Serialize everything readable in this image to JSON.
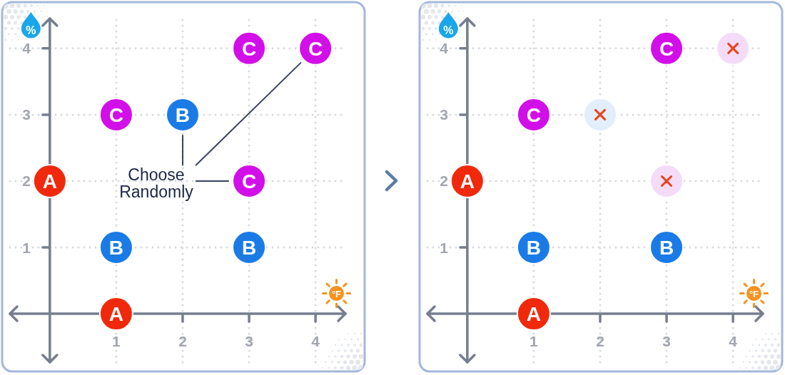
{
  "chart_data": [
    {
      "type": "scatter",
      "xlabel": "°F",
      "ylabel": "%",
      "xlim": [
        -0.6,
        4.45
      ],
      "ylim": [
        -0.73,
        4.45
      ],
      "xticks": [
        1,
        2,
        3,
        4
      ],
      "yticks": [
        1,
        2,
        3,
        4
      ],
      "grid": true,
      "marker": "circle",
      "annotations": [
        "Choose Randomly"
      ],
      "series": [
        {
          "name": "A",
          "color": "#f0290c",
          "x": [
            0,
            1
          ],
          "values": [
            2,
            0
          ]
        },
        {
          "name": "B",
          "color": "#1a7be6",
          "x": [
            2,
            1,
            3
          ],
          "values": [
            3,
            1,
            1
          ]
        },
        {
          "name": "C",
          "color": "#d20fe8",
          "x": [
            1,
            3,
            4,
            3
          ],
          "values": [
            3,
            4,
            4,
            2
          ]
        }
      ]
    },
    {
      "type": "scatter",
      "xlabel": "°F",
      "ylabel": "%",
      "xlim": [
        -0.6,
        4.45
      ],
      "ylim": [
        -0.73,
        4.45
      ],
      "xticks": [
        1,
        2,
        3,
        4
      ],
      "yticks": [
        1,
        2,
        3,
        4
      ],
      "grid": true,
      "marker": "circle",
      "series": [
        {
          "name": "A",
          "color": "#f0290c",
          "x": [
            0,
            1
          ],
          "values": [
            2,
            0
          ]
        },
        {
          "name": "B",
          "color": "#1a7be6",
          "x": [
            1,
            3
          ],
          "values": [
            1,
            1
          ]
        },
        {
          "name": "C",
          "color": "#d20fe8",
          "x": [
            1,
            3
          ],
          "values": [
            3,
            4
          ]
        },
        {
          "type": "scatter",
          "marker": "circle",
          "colors": [
            "#e2eefb",
            "#f4dcf9",
            "#f4dcf9"
          ],
          "x": [
            2,
            4,
            3
          ],
          "values": [
            3,
            4,
            2
          ]
        },
        {
          "type": "scatter",
          "marker": "cross",
          "color": "#e8441a",
          "x": [
            2,
            4,
            3
          ],
          "values": [
            3,
            4,
            2
          ]
        }
      ]
    }
  ]
}
